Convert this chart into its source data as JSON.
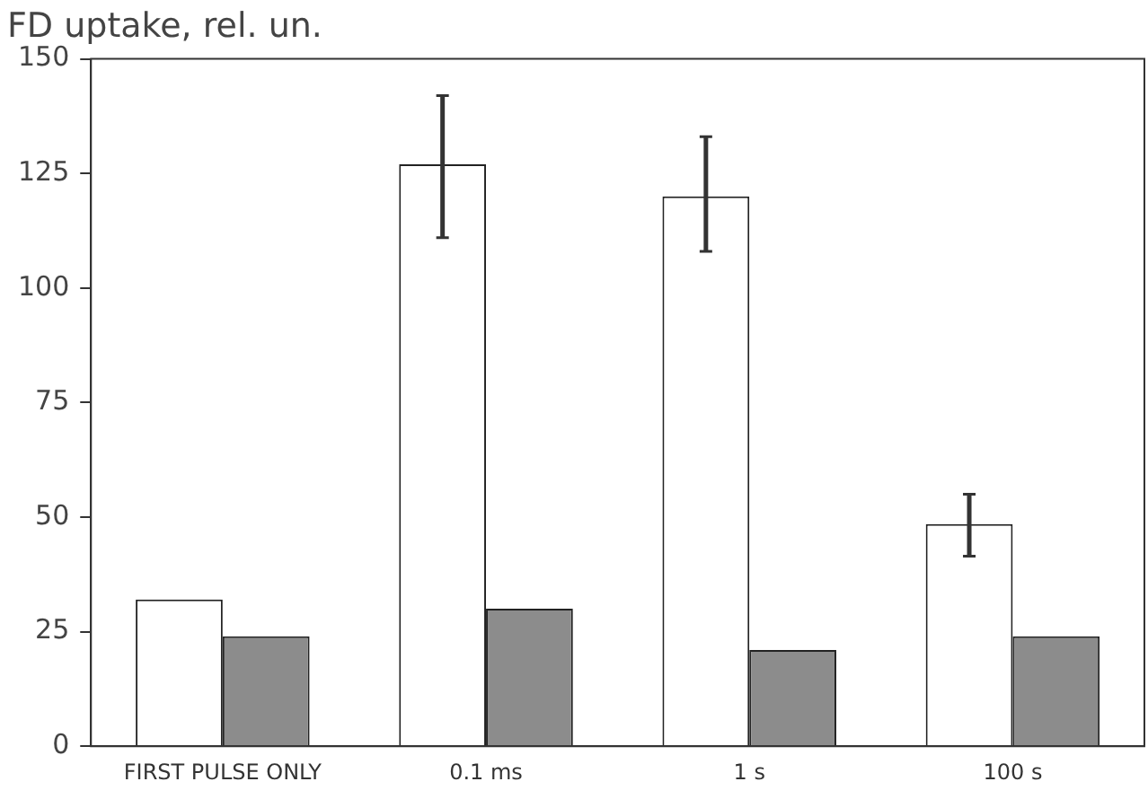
{
  "chart_data": {
    "type": "bar",
    "ylabel": "FD uptake, rel. un.",
    "categories": [
      "FIRST PULSE ONLY",
      "0.1 ms",
      "1 s",
      "100 s"
    ],
    "series": [
      {
        "color": "#ffffff",
        "values": [
          32,
          127,
          120,
          48.5
        ],
        "errors": [
          null,
          [
            111,
            142
          ],
          [
            108,
            133
          ],
          [
            41.5,
            55
          ]
        ]
      },
      {
        "color": "#8c8c8c",
        "values": [
          24,
          30,
          21,
          24
        ]
      }
    ],
    "ylim": [
      0,
      150
    ],
    "yticks": [
      0,
      25,
      50,
      75,
      100,
      125,
      150
    ],
    "grid": false,
    "legend": false
  }
}
